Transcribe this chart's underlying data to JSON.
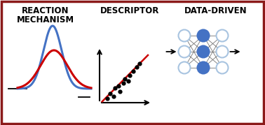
{
  "border_color": "#8B1A1A",
  "background_color": "#FFFFFF",
  "section1_title": "REACTION\nMECHANISM",
  "section2_title": "DESCRIPTOR",
  "section3_title": "DATA-DRIVEN",
  "blue_curve_color": "#4472C4",
  "red_curve_color": "#CC0000",
  "scatter_dot_color": "#000000",
  "scatter_line_color": "#CC0000",
  "nn_blue_color": "#4472C4",
  "nn_light_blue": "#A8C4E0",
  "nn_white": "#FFFFFF",
  "nn_edge_color": "#7090B0",
  "text_color": "#000000",
  "figw": 3.78,
  "figh": 1.79,
  "dpi": 100
}
